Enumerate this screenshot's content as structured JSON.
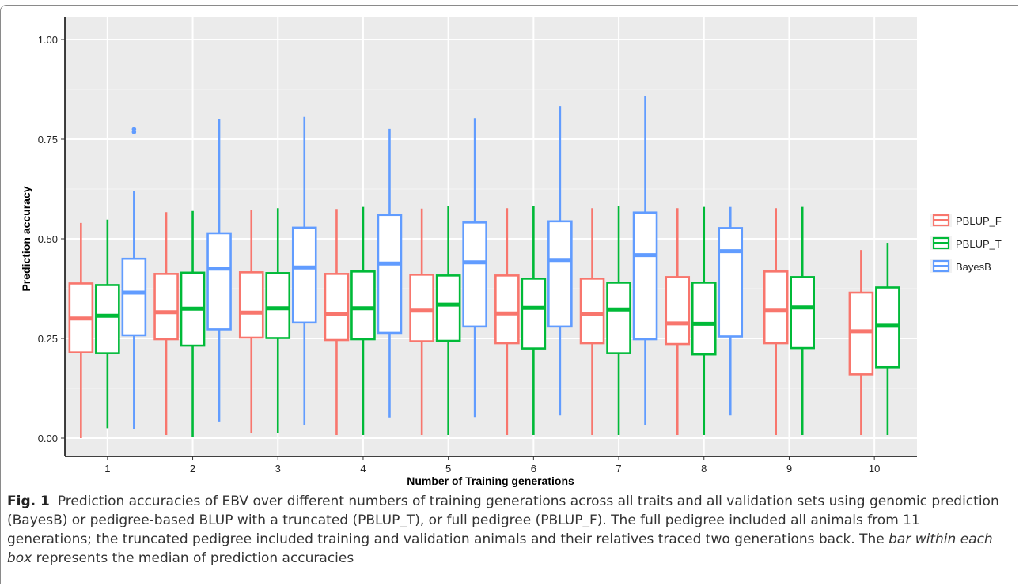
{
  "chart_data": {
    "type": "boxplot",
    "xlabel": "Number of Training generations",
    "ylabel": "Prediction accuracy",
    "ylim": [
      0,
      1
    ],
    "yticks": [
      "0.00",
      "0.25",
      "0.50",
      "0.75",
      "1.00"
    ],
    "categories": [
      "1",
      "2",
      "3",
      "4",
      "5",
      "6",
      "7",
      "8",
      "9",
      "10"
    ],
    "legend_position": "right",
    "grid": true,
    "series": [
      {
        "name": "PBLUP_F",
        "color": "#F8766D",
        "boxes": [
          {
            "min": 0.0,
            "q1": 0.215,
            "median": 0.3,
            "q3": 0.388,
            "max": 0.54
          },
          {
            "min": 0.008,
            "q1": 0.248,
            "median": 0.316,
            "q3": 0.412,
            "max": 0.567
          },
          {
            "min": 0.012,
            "q1": 0.252,
            "median": 0.315,
            "q3": 0.416,
            "max": 0.572
          },
          {
            "min": 0.008,
            "q1": 0.246,
            "median": 0.312,
            "q3": 0.412,
            "max": 0.575
          },
          {
            "min": 0.008,
            "q1": 0.243,
            "median": 0.32,
            "q3": 0.41,
            "max": 0.576
          },
          {
            "min": 0.008,
            "q1": 0.238,
            "median": 0.313,
            "q3": 0.408,
            "max": 0.577
          },
          {
            "min": 0.008,
            "q1": 0.238,
            "median": 0.311,
            "q3": 0.4,
            "max": 0.577
          },
          {
            "min": 0.008,
            "q1": 0.236,
            "median": 0.288,
            "q3": 0.404,
            "max": 0.577
          },
          {
            "min": 0.008,
            "q1": 0.238,
            "median": 0.32,
            "q3": 0.418,
            "max": 0.577
          },
          {
            "min": 0.008,
            "q1": 0.16,
            "median": 0.268,
            "q3": 0.365,
            "max": 0.472
          }
        ]
      },
      {
        "name": "PBLUP_T",
        "color": "#00BA38",
        "boxes": [
          {
            "min": 0.025,
            "q1": 0.213,
            "median": 0.307,
            "q3": 0.384,
            "max": 0.548
          },
          {
            "min": 0.003,
            "q1": 0.232,
            "median": 0.325,
            "q3": 0.415,
            "max": 0.57
          },
          {
            "min": 0.012,
            "q1": 0.251,
            "median": 0.326,
            "q3": 0.414,
            "max": 0.577
          },
          {
            "min": 0.008,
            "q1": 0.248,
            "median": 0.326,
            "q3": 0.418,
            "max": 0.58
          },
          {
            "min": 0.008,
            "q1": 0.244,
            "median": 0.335,
            "q3": 0.408,
            "max": 0.582
          },
          {
            "min": 0.008,
            "q1": 0.225,
            "median": 0.327,
            "q3": 0.4,
            "max": 0.582
          },
          {
            "min": 0.008,
            "q1": 0.213,
            "median": 0.323,
            "q3": 0.39,
            "max": 0.582
          },
          {
            "min": 0.008,
            "q1": 0.21,
            "median": 0.287,
            "q3": 0.39,
            "max": 0.58
          },
          {
            "min": 0.008,
            "q1": 0.226,
            "median": 0.328,
            "q3": 0.404,
            "max": 0.58
          },
          {
            "min": 0.008,
            "q1": 0.178,
            "median": 0.282,
            "q3": 0.378,
            "max": 0.49
          }
        ]
      },
      {
        "name": "BayesB",
        "color": "#619CFF",
        "boxes": [
          {
            "min": 0.022,
            "q1": 0.258,
            "median": 0.365,
            "q3": 0.45,
            "max": 0.62,
            "outliers": [
              0.768,
              0.775
            ]
          },
          {
            "min": 0.042,
            "q1": 0.273,
            "median": 0.425,
            "q3": 0.514,
            "max": 0.8
          },
          {
            "min": 0.033,
            "q1": 0.29,
            "median": 0.428,
            "q3": 0.528,
            "max": 0.806
          },
          {
            "min": 0.052,
            "q1": 0.264,
            "median": 0.438,
            "q3": 0.56,
            "max": 0.776
          },
          {
            "min": 0.053,
            "q1": 0.28,
            "median": 0.441,
            "q3": 0.541,
            "max": 0.803
          },
          {
            "min": 0.057,
            "q1": 0.28,
            "median": 0.447,
            "q3": 0.544,
            "max": 0.833
          },
          {
            "min": 0.033,
            "q1": 0.248,
            "median": 0.459,
            "q3": 0.566,
            "max": 0.858
          },
          {
            "min": 0.057,
            "q1": 0.255,
            "median": 0.469,
            "q3": 0.527,
            "max": 0.58
          },
          null,
          null
        ]
      }
    ]
  },
  "caption": {
    "label": "Fig. 1",
    "text_before_italic": "Prediction accuracies of EBV over different numbers of training generations across all traits and all validation sets using genomic prediction (BayesB) or pedigree-based BLUP with a truncated (PBLUP_T), or full pedigree (PBLUP_F). The full pedigree included all animals from 11 generations; the truncated pedigree included training and validation animals and their relatives traced two generations back. The ",
    "italic": "bar within each box",
    "text_after_italic": " represents the median of prediction accuracies"
  }
}
